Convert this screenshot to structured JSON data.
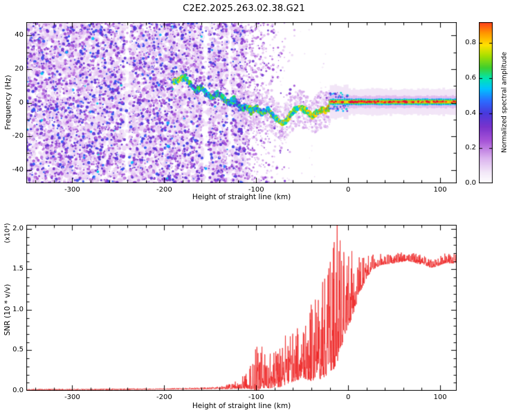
{
  "title": "C2E2.2025.263.02.38.G21",
  "colors": {
    "background": "#ffffff",
    "axis": "#000000",
    "snr_line": "#ee2020"
  },
  "chart_data": [
    {
      "type": "heatmap",
      "panel": "spectrogram",
      "xlabel": "Height of straight line (km)",
      "ylabel": "Frequency (Hz)",
      "xlim": [
        -350,
        118
      ],
      "ylim": [
        -48,
        48
      ],
      "xticks": [
        -300,
        -200,
        -100,
        0,
        100
      ],
      "xtick_labels": [
        "-300",
        "-200",
        "-100",
        "0",
        "100"
      ],
      "yticks": [
        -40,
        -20,
        0,
        20,
        40
      ],
      "ytick_labels": [
        "-40",
        "-20",
        "0",
        "20",
        "40"
      ],
      "x_minor_step": 20,
      "y_minor_step": 10,
      "colorbar": {
        "label": "Normalized spectral amplitude",
        "ticks": [
          0,
          0.2,
          0.4,
          0.6,
          0.8
        ],
        "tick_labels": [
          "0.0",
          "0.2",
          "0.4",
          "0.6",
          "0.8"
        ],
        "vmax": 0.92
      },
      "colormap": [
        [
          0.0,
          "#ffffff"
        ],
        [
          0.06,
          "#f3e8f8"
        ],
        [
          0.14,
          "#dcb4ef"
        ],
        [
          0.24,
          "#a855d8"
        ],
        [
          0.32,
          "#7a33cc"
        ],
        [
          0.4,
          "#4839dd"
        ],
        [
          0.47,
          "#2b6bff"
        ],
        [
          0.54,
          "#00c3ff"
        ],
        [
          0.6,
          "#00e6b0"
        ],
        [
          0.66,
          "#3ecf2e"
        ],
        [
          0.73,
          "#aadf00"
        ],
        [
          0.79,
          "#ffe200"
        ],
        [
          0.86,
          "#ff9500"
        ],
        [
          0.93,
          "#ff3020"
        ],
        [
          1.0,
          "#e00040"
        ]
      ],
      "noise_region": {
        "x_end_dense": -112,
        "x_end_sparse": -55,
        "amplitude_range": [
          0.05,
          0.45
        ]
      },
      "white_stripes": [
        [
          -243,
          -238
        ],
        [
          -158,
          -152
        ],
        [
          -131,
          -127
        ]
      ],
      "signal_track": {
        "x": [
          -190,
          -184,
          -178,
          -172,
          -166,
          -160,
          -154,
          -148,
          -142,
          -136,
          -130,
          -124,
          -118,
          -112,
          -106,
          -100,
          -94,
          -88,
          -82,
          -76,
          -70,
          -64,
          -58,
          -52,
          -46,
          -40,
          -34,
          -28,
          -24,
          -20
        ],
        "freq": [
          12,
          14,
          15,
          11,
          7,
          9,
          5,
          3,
          6,
          2,
          0,
          2,
          -3,
          -2,
          -5,
          -3,
          -6,
          -4,
          -8,
          -11,
          -12,
          -8,
          -4,
          -3,
          -5,
          -8,
          -6,
          -4,
          -5,
          -2
        ],
        "amp": [
          0.6,
          0.7,
          0.65,
          0.55,
          0.5,
          0.55,
          0.5,
          0.55,
          0.5,
          0.55,
          0.5,
          0.55,
          0.5,
          0.55,
          0.6,
          0.55,
          0.6,
          0.6,
          0.62,
          0.65,
          0.68,
          0.62,
          0.6,
          0.62,
          0.65,
          0.7,
          0.68,
          0.72,
          0.75,
          0.8
        ]
      },
      "signal_line": {
        "x_start": -20,
        "freq": 0.5,
        "core_amp": [
          0.8,
          0.96
        ],
        "halo_halfwidth_hz": 7
      }
    },
    {
      "type": "line",
      "panel": "snr",
      "xlabel": "Height of straight line (km)",
      "ylabel": "SNR (10 * v/v)",
      "scale_label": "(x10⁴)",
      "xlim": [
        -350,
        118
      ],
      "ylim": [
        0,
        2.05
      ],
      "xticks": [
        -300,
        -200,
        -100,
        0,
        100
      ],
      "xtick_labels": [
        "-300",
        "-200",
        "-100",
        "0",
        "100"
      ],
      "yticks": [
        0,
        0.5,
        1.0,
        1.5,
        2.0
      ],
      "ytick_labels": [
        "0.0",
        "0.5",
        "1.0",
        "1.5",
        "2.0"
      ],
      "x_minor_step": 20,
      "y_minor_step": 0.1,
      "line_color": "#ee2020",
      "series": [
        {
          "name": "SNR",
          "mean_keypoints": [
            [
              -350,
              0.012
            ],
            [
              -260,
              0.015
            ],
            [
              -200,
              0.02
            ],
            [
              -160,
              0.025
            ],
            [
              -135,
              0.03
            ],
            [
              -118,
              0.05
            ],
            [
              -105,
              0.09
            ],
            [
              -95,
              0.14
            ],
            [
              -85,
              0.12
            ],
            [
              -75,
              0.15
            ],
            [
              -65,
              0.22
            ],
            [
              -55,
              0.27
            ],
            [
              -45,
              0.3
            ],
            [
              -38,
              0.33
            ],
            [
              -30,
              0.38
            ],
            [
              -24,
              0.45
            ],
            [
              -18,
              0.55
            ],
            [
              -12,
              0.65
            ],
            [
              -6,
              0.85
            ],
            [
              0,
              1.0
            ],
            [
              6,
              1.1
            ],
            [
              12,
              1.3
            ],
            [
              18,
              1.42
            ],
            [
              25,
              1.52
            ],
            [
              35,
              1.58
            ],
            [
              50,
              1.6
            ],
            [
              65,
              1.63
            ],
            [
              80,
              1.58
            ],
            [
              92,
              1.54
            ],
            [
              105,
              1.6
            ],
            [
              118,
              1.6
            ]
          ],
          "noise_keypoints": [
            [
              -350,
              0.006
            ],
            [
              -180,
              0.007
            ],
            [
              -140,
              0.012
            ],
            [
              -120,
              0.05
            ],
            [
              -108,
              0.12
            ],
            [
              -98,
              0.28
            ],
            [
              -88,
              0.2
            ],
            [
              -78,
              0.22
            ],
            [
              -68,
              0.28
            ],
            [
              -58,
              0.3
            ],
            [
              -48,
              0.32
            ],
            [
              -40,
              0.45
            ],
            [
              -32,
              0.5
            ],
            [
              -26,
              0.58
            ],
            [
              -20,
              0.65
            ],
            [
              -14,
              0.75
            ],
            [
              -9,
              0.65
            ],
            [
              -4,
              0.5
            ],
            [
              2,
              0.42
            ],
            [
              8,
              0.3
            ],
            [
              14,
              0.22
            ],
            [
              22,
              0.12
            ],
            [
              30,
              0.07
            ],
            [
              45,
              0.055
            ],
            [
              118,
              0.055
            ]
          ],
          "peak": {
            "x": -12,
            "y": 2.05
          }
        }
      ]
    }
  ]
}
